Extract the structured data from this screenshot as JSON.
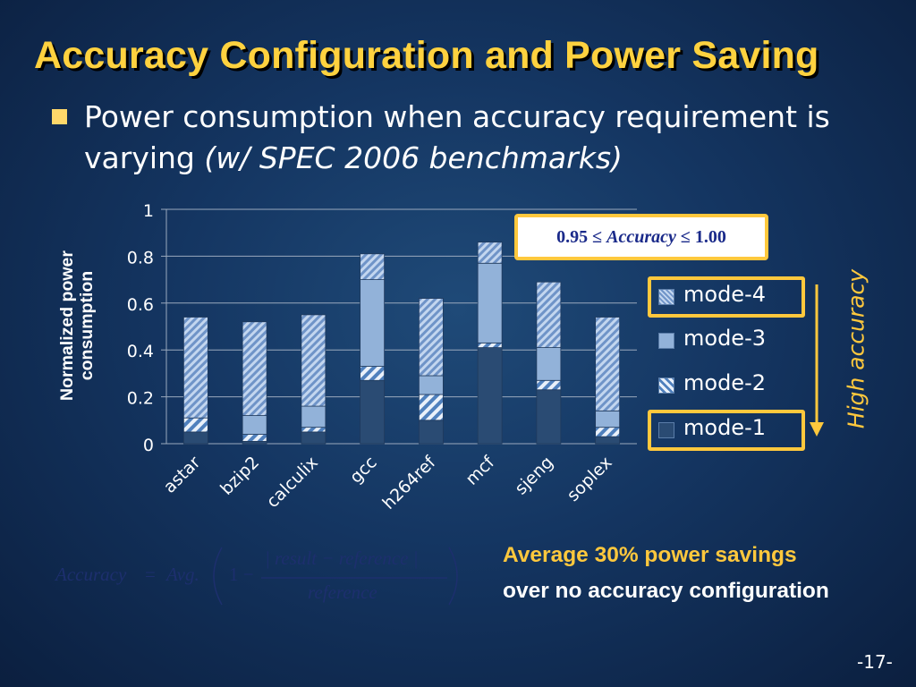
{
  "slide": {
    "title": "Accuracy Configuration and Power Saving",
    "bullet_main": "Power consumption when accuracy requirement is varying ",
    "bullet_italic": "(w/ SPEC 2006 benchmarks)",
    "page_number": "-17-"
  },
  "accuracy_box": {
    "prefix": "0.95 ≤ ",
    "word": "Accuracy",
    "suffix": " ≤ 1.00"
  },
  "arrow_label": "High accuracy",
  "note": {
    "line1": "Average 30%  power savings",
    "line2": "over no accuracy configuration"
  },
  "formula": {
    "lhs": "Accuracy",
    "eq": "=",
    "avg": "Avg.",
    "one_minus": "1 −",
    "numerator": "| result − reference |",
    "denominator": "reference"
  },
  "chart_data": {
    "type": "bar",
    "stacked": true,
    "categories": [
      "astar",
      "bzip2",
      "calculix",
      "gcc",
      "h264ref",
      "mcf",
      "sjeng",
      "soplex"
    ],
    "ylabel": "Normalized power consumption",
    "ylim": [
      0,
      1
    ],
    "yticks": [
      "0",
      "0.2",
      "0.4",
      "0.6",
      "0.8",
      "1"
    ],
    "grid": true,
    "legend_position": "right",
    "highlighted_legend": [
      "mode-4",
      "mode-1"
    ],
    "series": [
      {
        "name": "mode-1",
        "values": [
          0.05,
          0.01,
          0.05,
          0.27,
          0.1,
          0.41,
          0.23,
          0.03
        ],
        "color": "#2a4b73"
      },
      {
        "name": "mode-2",
        "values": [
          0.06,
          0.03,
          0.02,
          0.06,
          0.11,
          0.02,
          0.04,
          0.04
        ],
        "color": "#a6c2e6"
      },
      {
        "name": "mode-3",
        "values": [
          0.0,
          0.08,
          0.09,
          0.37,
          0.08,
          0.34,
          0.14,
          0.07
        ],
        "color": "#92b2d9"
      },
      {
        "name": "mode-4",
        "values": [
          0.43,
          0.4,
          0.39,
          0.11,
          0.33,
          0.09,
          0.28,
          0.4
        ],
        "color": "#7f9fcc"
      }
    ]
  }
}
